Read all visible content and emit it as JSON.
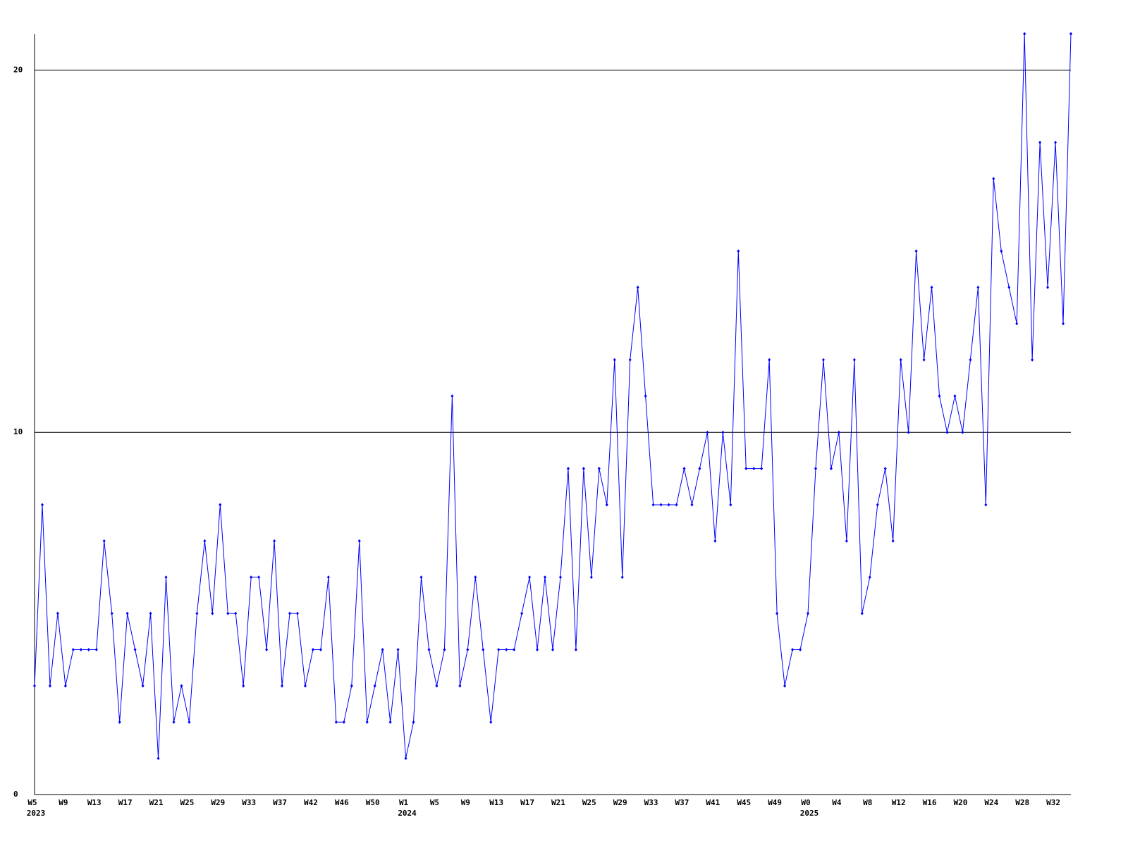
{
  "chart_data": {
    "type": "line",
    "color": "#0000ff",
    "grid": true,
    "ylim": [
      0,
      21
    ],
    "yticks": [
      0,
      10,
      20
    ],
    "categories": [
      "W5",
      null,
      null,
      null,
      "W9",
      null,
      null,
      null,
      "W13",
      null,
      null,
      null,
      "W17",
      null,
      null,
      null,
      "W21",
      null,
      null,
      null,
      "W25",
      null,
      null,
      null,
      "W29",
      null,
      null,
      null,
      "W33",
      null,
      null,
      null,
      "W37",
      null,
      null,
      null,
      "W42",
      null,
      null,
      null,
      "W46",
      null,
      null,
      null,
      "W50",
      null,
      null,
      null,
      "W1",
      null,
      null,
      null,
      "W5",
      null,
      null,
      null,
      "W9",
      null,
      null,
      null,
      "W13",
      null,
      null,
      null,
      "W17",
      null,
      null,
      null,
      "W21",
      null,
      null,
      null,
      "W25",
      null,
      null,
      null,
      "W29",
      null,
      null,
      null,
      "W33",
      null,
      null,
      null,
      "W37",
      null,
      null,
      null,
      "W41",
      null,
      null,
      null,
      "W45",
      null,
      null,
      null,
      "W49",
      null,
      null,
      null,
      "W0",
      null,
      null,
      null,
      "W4",
      null,
      null,
      null,
      "W8",
      null,
      null,
      null,
      "W12",
      null,
      null,
      null,
      "W16",
      null,
      null,
      null,
      "W20",
      null,
      null,
      null,
      "W24",
      null,
      null,
      null,
      "W28",
      null,
      null,
      null,
      "W32",
      null,
      null
    ],
    "years": [
      "2023",
      null,
      null,
      null,
      null,
      null,
      null,
      null,
      null,
      null,
      null,
      null,
      null,
      null,
      null,
      null,
      null,
      null,
      null,
      null,
      null,
      null,
      null,
      null,
      null,
      null,
      null,
      null,
      null,
      null,
      null,
      null,
      null,
      null,
      null,
      null,
      null,
      null,
      null,
      null,
      null,
      null,
      null,
      null,
      null,
      null,
      null,
      null,
      "2024",
      null,
      null,
      null,
      null,
      null,
      null,
      null,
      null,
      null,
      null,
      null,
      null,
      null,
      null,
      null,
      null,
      null,
      null,
      null,
      null,
      null,
      null,
      null,
      null,
      null,
      null,
      null,
      null,
      null,
      null,
      null,
      null,
      null,
      null,
      null,
      null,
      null,
      null,
      null,
      null,
      null,
      null,
      null,
      null,
      null,
      null,
      null,
      null,
      null,
      null,
      null,
      "2025",
      null,
      null,
      null,
      null,
      null,
      null,
      null,
      null,
      null,
      null,
      null,
      null,
      null,
      null,
      null,
      null,
      null,
      null,
      null,
      null,
      null,
      null,
      null,
      null,
      null,
      null,
      null,
      null,
      null,
      null,
      null,
      null,
      null,
      null
    ],
    "values": [
      3,
      8,
      3,
      5,
      3,
      4,
      4,
      4,
      4,
      7,
      5,
      2,
      5,
      4,
      3,
      5,
      1,
      6,
      2,
      3,
      2,
      5,
      7,
      5,
      8,
      5,
      5,
      3,
      6,
      6,
      4,
      7,
      3,
      5,
      5,
      3,
      4,
      4,
      6,
      2,
      2,
      3,
      7,
      2,
      3,
      4,
      2,
      4,
      1,
      2,
      6,
      4,
      3,
      4,
      11,
      3,
      4,
      6,
      4,
      2,
      4,
      4,
      4,
      5,
      6,
      4,
      6,
      4,
      6,
      9,
      4,
      9,
      6,
      9,
      8,
      12,
      6,
      12,
      14,
      11,
      8,
      8,
      8,
      8,
      9,
      8,
      9,
      10,
      7,
      10,
      8,
      15,
      9,
      9,
      9,
      12,
      5,
      3,
      4,
      4,
      5,
      9,
      12,
      9,
      10,
      7,
      12,
      5,
      6,
      8,
      9,
      7,
      12,
      10,
      15,
      12,
      14,
      11,
      10,
      11,
      10,
      12,
      14,
      8,
      17,
      15,
      14,
      13,
      21,
      12,
      18,
      14,
      18,
      13,
      21
    ]
  }
}
